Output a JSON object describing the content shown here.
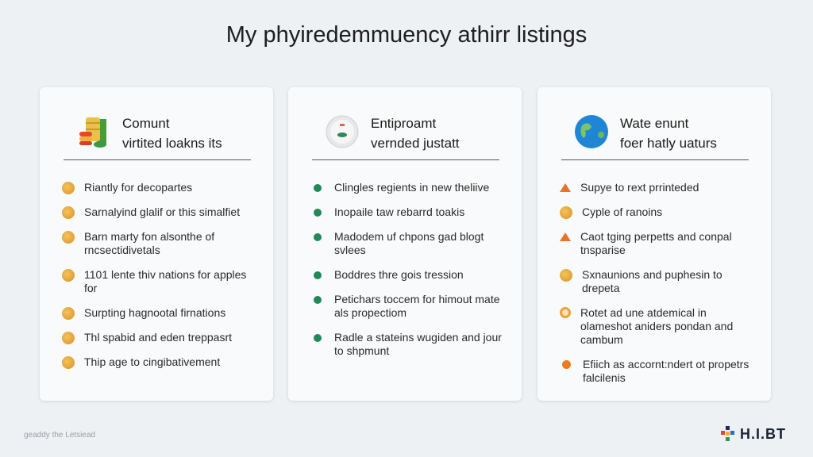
{
  "page_title": "My phyiredemmuency athirr listings",
  "cards": [
    {
      "icon": "coin-stack-icon",
      "title_line1": "Comunt",
      "title_line2": "virtited loakns its",
      "bullet": "coin",
      "items": [
        "Riantly for decopartes",
        "Sarnalyind glalif or this simalfiet",
        "Barn marty fon alsonthe of rncsectidivetals",
        "1101 lente thiv nations for apples for",
        "Surpting hagnootal firnations",
        "Thl spabid and eden treppasrt",
        "Thip age to cingibativement"
      ]
    },
    {
      "icon": "badge-icon",
      "title_line1": "Entiproamt",
      "title_line2": "vernded justatt",
      "bullet": "green-dot",
      "items": [
        "Clingles regients in new theliive",
        "Inopaile taw rebarrd toakis",
        "Madodem uf chpons gad blogt svlees",
        "Boddres thre gois tression",
        "Petichars toccem for himout mate als propectiom",
        "Radle a stateins wugiden and jour to shpmunt"
      ]
    },
    {
      "icon": "globe-icon",
      "title_line1": "Wate enunt",
      "title_line2": "foer hatly uaturs",
      "items": [
        "Supye to rext prrinteded",
        "Cyple of ranoins",
        "Caot tging perpetts and conpal tnsparise",
        "Sxnaunions and puphesin to drepeta",
        "Rotet ad une atdemical in olameshot aniders pondan and cambum",
        "Efiich as accornt:ndert ot propetrs falcilenis"
      ],
      "bullets": [
        "triangle",
        "coin",
        "triangle",
        "coin",
        "ring",
        "dot"
      ]
    }
  ],
  "footer": {
    "caption": "geaddy the Letsiead",
    "logo": "H.I.BT"
  },
  "colors": {
    "background": "#eef1f4",
    "card": "#f9fafb",
    "green": "#1f8a55",
    "orange": "#e8742a",
    "gold": "#d9902a"
  }
}
